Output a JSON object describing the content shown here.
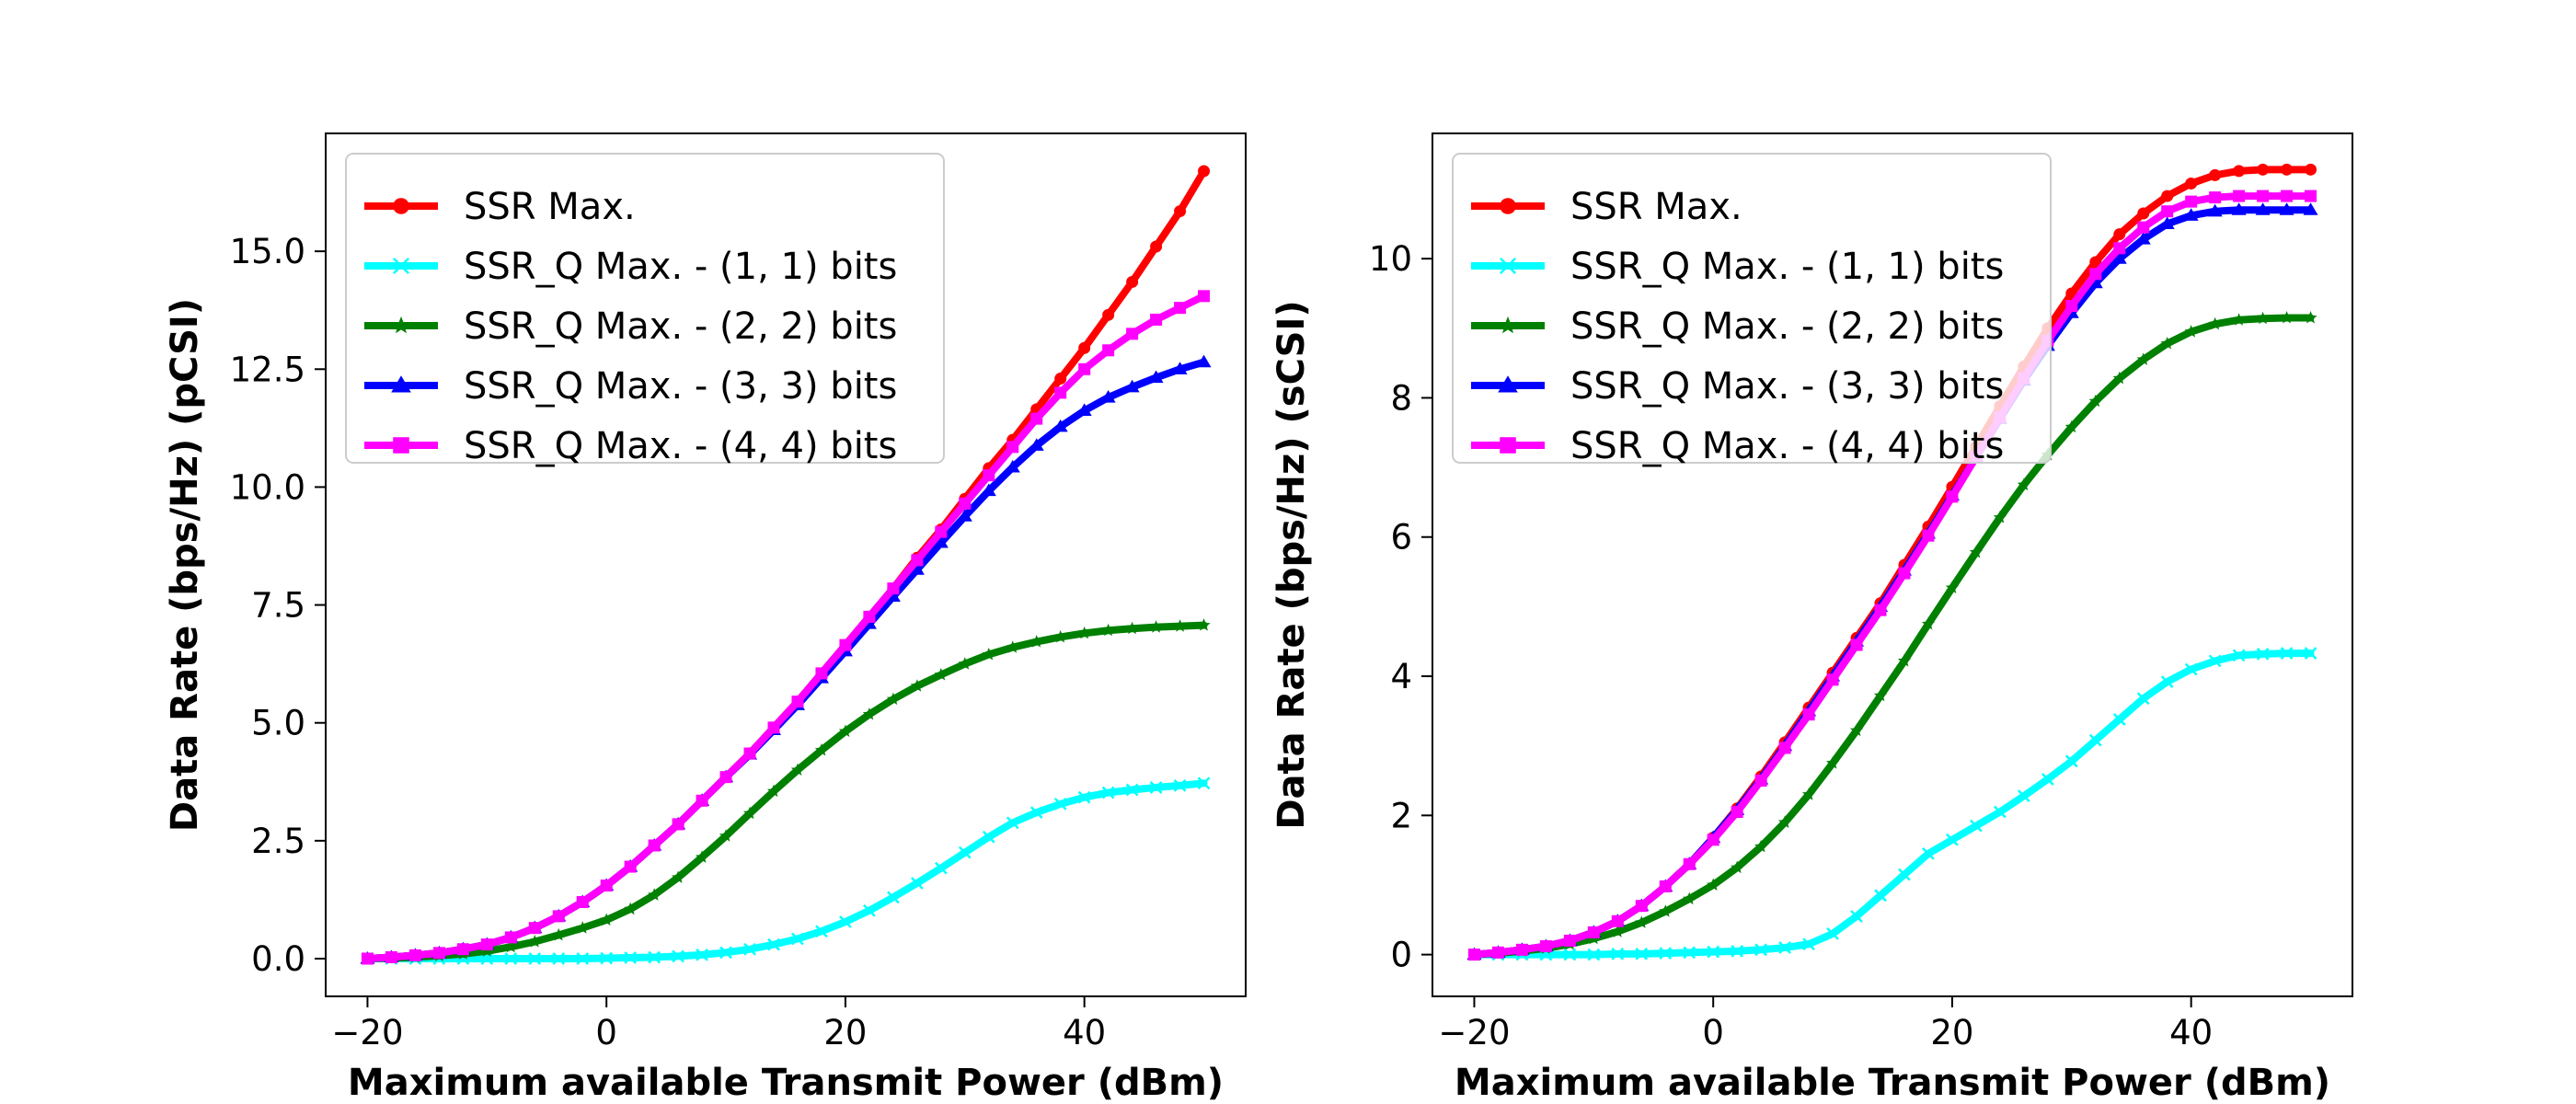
{
  "chart_data": [
    {
      "type": "line",
      "title": "",
      "xlabel": "Maximum available Transmit Power (dBm)",
      "ylabel": "Data Rate (bps/Hz) (pCSI)",
      "xlim": [
        -23.5,
        53.5
      ],
      "ylim": [
        -0.8,
        17.5
      ],
      "xticks": [
        -20,
        0,
        20,
        40
      ],
      "xtick_labels": [
        "−20",
        "0",
        "20",
        "40"
      ],
      "yticks": [
        0,
        2.5,
        5,
        7.5,
        10,
        12.5,
        15
      ],
      "ytick_labels": [
        "0.0",
        "2.5",
        "5.0",
        "7.5",
        "10.0",
        "12.5",
        "15.0"
      ],
      "grid": false,
      "legend_position": "upper-left",
      "x": [
        -20,
        -18,
        -16,
        -14,
        -12,
        -10,
        -8,
        -6,
        -4,
        -2,
        0,
        2,
        4,
        6,
        8,
        10,
        12,
        14,
        16,
        18,
        20,
        22,
        24,
        26,
        28,
        30,
        32,
        34,
        36,
        38,
        40,
        42,
        44,
        46,
        48,
        50
      ],
      "series": [
        {
          "name": "SSR Max.",
          "color": "#ff0000",
          "marker": "circle",
          "values": [
            0.0,
            0.03,
            0.07,
            0.12,
            0.2,
            0.3,
            0.45,
            0.65,
            0.9,
            1.2,
            1.55,
            1.95,
            2.4,
            2.85,
            3.35,
            3.85,
            4.35,
            4.9,
            5.45,
            6.05,
            6.65,
            7.25,
            7.85,
            8.5,
            9.1,
            9.75,
            10.4,
            11.0,
            11.65,
            12.3,
            12.95,
            13.65,
            14.35,
            15.1,
            15.85,
            16.7
          ]
        },
        {
          "name": "SSR_Q Max. - (1, 1) bits",
          "color": "#00ffff",
          "marker": "x",
          "values": [
            0.0,
            0.0,
            0.0,
            0.0,
            0.0,
            0.0,
            0.0,
            0.0,
            0.0,
            0.0,
            0.01,
            0.02,
            0.03,
            0.05,
            0.08,
            0.13,
            0.2,
            0.3,
            0.42,
            0.58,
            0.78,
            1.02,
            1.3,
            1.6,
            1.92,
            2.25,
            2.58,
            2.88,
            3.1,
            3.28,
            3.42,
            3.52,
            3.58,
            3.63,
            3.67,
            3.72
          ]
        },
        {
          "name": "SSR_Q Max. - (2, 2) bits",
          "color": "#008000",
          "marker": "star",
          "values": [
            0.0,
            0.01,
            0.03,
            0.06,
            0.1,
            0.16,
            0.25,
            0.36,
            0.5,
            0.65,
            0.82,
            1.05,
            1.35,
            1.72,
            2.15,
            2.6,
            3.08,
            3.55,
            4.0,
            4.42,
            4.82,
            5.18,
            5.5,
            5.78,
            6.02,
            6.25,
            6.45,
            6.6,
            6.72,
            6.82,
            6.9,
            6.96,
            7.0,
            7.03,
            7.05,
            7.07
          ]
        },
        {
          "name": "SSR_Q Max. - (3, 3) bits",
          "color": "#0000ff",
          "marker": "triangle",
          "values": [
            0.0,
            0.03,
            0.07,
            0.12,
            0.2,
            0.3,
            0.45,
            0.65,
            0.9,
            1.2,
            1.55,
            1.95,
            2.4,
            2.85,
            3.35,
            3.85,
            4.33,
            4.85,
            5.38,
            5.95,
            6.52,
            7.1,
            7.68,
            8.25,
            8.82,
            9.38,
            9.92,
            10.42,
            10.88,
            11.28,
            11.62,
            11.9,
            12.12,
            12.32,
            12.5,
            12.65
          ]
        },
        {
          "name": "SSR_Q Max. - (4, 4) bits",
          "color": "#ff00ff",
          "marker": "square",
          "values": [
            0.0,
            0.03,
            0.07,
            0.12,
            0.2,
            0.3,
            0.45,
            0.65,
            0.9,
            1.2,
            1.55,
            1.95,
            2.4,
            2.85,
            3.35,
            3.85,
            4.35,
            4.9,
            5.45,
            6.05,
            6.65,
            7.25,
            7.85,
            8.45,
            9.05,
            9.65,
            10.25,
            10.85,
            11.45,
            12.0,
            12.5,
            12.9,
            13.25,
            13.55,
            13.8,
            14.05
          ]
        }
      ]
    },
    {
      "type": "line",
      "title": "",
      "xlabel": "Maximum available Transmit Power (dBm)",
      "ylabel": "Data Rate (bps/Hz) (sCSI)",
      "xlim": [
        -23.5,
        53.5
      ],
      "ylim": [
        -0.6,
        11.8
      ],
      "xticks": [
        -20,
        0,
        20,
        40
      ],
      "xtick_labels": [
        "−20",
        "0",
        "20",
        "40"
      ],
      "yticks": [
        0,
        2,
        4,
        6,
        8,
        10
      ],
      "ytick_labels": [
        "0",
        "2",
        "4",
        "6",
        "8",
        "10"
      ],
      "grid": false,
      "legend_position": "upper-left",
      "x": [
        -20,
        -18,
        -16,
        -14,
        -12,
        -10,
        -8,
        -6,
        -4,
        -2,
        0,
        2,
        4,
        6,
        8,
        10,
        12,
        14,
        16,
        18,
        20,
        22,
        24,
        26,
        28,
        30,
        32,
        34,
        36,
        38,
        40,
        42,
        44,
        46,
        48,
        50
      ],
      "series": [
        {
          "name": "SSR Max.",
          "color": "#ff0000",
          "marker": "circle",
          "values": [
            0.0,
            0.03,
            0.07,
            0.12,
            0.2,
            0.32,
            0.48,
            0.7,
            0.98,
            1.3,
            1.68,
            2.1,
            2.56,
            3.05,
            3.55,
            4.05,
            4.55,
            5.05,
            5.6,
            6.15,
            6.72,
            7.3,
            7.88,
            8.45,
            9.0,
            9.5,
            9.95,
            10.35,
            10.65,
            10.9,
            11.08,
            11.2,
            11.26,
            11.28,
            11.28,
            11.28
          ]
        },
        {
          "name": "SSR_Q Max. - (1, 1) bits",
          "color": "#00ffff",
          "marker": "x",
          "values": [
            0.0,
            0.0,
            0.0,
            0.0,
            0.0,
            0.0,
            0.01,
            0.01,
            0.02,
            0.03,
            0.04,
            0.05,
            0.07,
            0.1,
            0.15,
            0.3,
            0.55,
            0.85,
            1.15,
            1.45,
            1.65,
            1.85,
            2.05,
            2.28,
            2.52,
            2.78,
            3.08,
            3.38,
            3.68,
            3.92,
            4.1,
            4.22,
            4.3,
            4.32,
            4.33,
            4.33
          ]
        },
        {
          "name": "SSR_Q Max. - (2, 2) bits",
          "color": "#008000",
          "marker": "star",
          "values": [
            0.0,
            0.02,
            0.05,
            0.09,
            0.15,
            0.23,
            0.33,
            0.46,
            0.62,
            0.8,
            1.0,
            1.25,
            1.55,
            1.9,
            2.3,
            2.75,
            3.22,
            3.72,
            4.22,
            4.75,
            5.27,
            5.78,
            6.28,
            6.75,
            7.18,
            7.58,
            7.95,
            8.28,
            8.55,
            8.78,
            8.95,
            9.06,
            9.12,
            9.14,
            9.15,
            9.15
          ]
        },
        {
          "name": "SSR_Q Max. - (3, 3) bits",
          "color": "#0000ff",
          "marker": "triangle",
          "values": [
            0.0,
            0.03,
            0.07,
            0.12,
            0.2,
            0.32,
            0.48,
            0.7,
            0.98,
            1.3,
            1.68,
            2.08,
            2.52,
            3.0,
            3.5,
            4.0,
            4.5,
            5.0,
            5.52,
            6.05,
            6.6,
            7.15,
            7.7,
            8.25,
            8.75,
            9.22,
            9.65,
            10.0,
            10.28,
            10.5,
            10.62,
            10.68,
            10.7,
            10.7,
            10.7,
            10.7
          ]
        },
        {
          "name": "SSR_Q Max. - (4, 4) bits",
          "color": "#ff00ff",
          "marker": "square",
          "values": [
            0.0,
            0.03,
            0.07,
            0.12,
            0.2,
            0.32,
            0.48,
            0.7,
            0.98,
            1.3,
            1.65,
            2.05,
            2.5,
            2.97,
            3.45,
            3.95,
            4.45,
            4.95,
            5.48,
            6.02,
            6.58,
            7.15,
            7.72,
            8.28,
            8.82,
            9.32,
            9.78,
            10.15,
            10.45,
            10.68,
            10.82,
            10.88,
            10.9,
            10.9,
            10.9,
            10.9
          ]
        }
      ]
    }
  ]
}
